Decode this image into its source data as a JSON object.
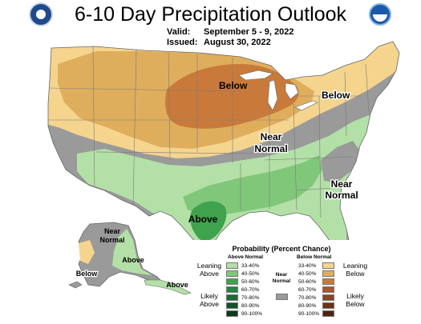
{
  "header": {
    "title": "6-10 Day Precipitation Outlook",
    "valid_label": "Valid:",
    "valid_value": "September 5 - 9, 2022",
    "issued_label": "Issued:",
    "issued_value": "August 30, 2022"
  },
  "map_labels": {
    "below_upper_midwest": "Below",
    "below_northeast": "Below",
    "near_normal_central_1": "Near",
    "near_normal_central_2": "Normal",
    "near_normal_southeast_1": "Near",
    "near_normal_southeast_2": "Normal",
    "above_texas": "Above",
    "alaska_near_1": "Near",
    "alaska_near_2": "Normal",
    "alaska_above": "Above",
    "alaska_below": "Below",
    "alaska_aleutians_above": "Above"
  },
  "legend": {
    "title": "Probability (Percent Chance)",
    "above_header": "Above Normal",
    "below_header": "Below Normal",
    "near_normal_1": "Near",
    "near_normal_2": "Normal",
    "leaning_above_1": "Leaning",
    "leaning_above_2": "Above",
    "likely_above_1": "Likely",
    "likely_above_2": "Above",
    "leaning_below_1": "Leaning",
    "leaning_below_2": "Below",
    "likely_below_1": "Likely",
    "likely_below_2": "Below",
    "above_rows": [
      {
        "pct": "33-40%",
        "color": "#b3e0a6"
      },
      {
        "pct": "40-50%",
        "color": "#80c77a"
      },
      {
        "pct": "50-60%",
        "color": "#3fa34d"
      },
      {
        "pct": "60-70%",
        "color": "#238443"
      },
      {
        "pct": "70-80%",
        "color": "#1a6b35"
      },
      {
        "pct": "80-90%",
        "color": "#11522a"
      },
      {
        "pct": "90-100%",
        "color": "#0a3a1d"
      }
    ],
    "below_rows": [
      {
        "pct": "33-40%",
        "color": "#f5d48e"
      },
      {
        "pct": "40-50%",
        "color": "#dfae5c"
      },
      {
        "pct": "50-60%",
        "color": "#c97a3a"
      },
      {
        "pct": "60-70%",
        "color": "#a9572c"
      },
      {
        "pct": "70-80%",
        "color": "#8b4422"
      },
      {
        "pct": "80-90%",
        "color": "#6b331a"
      },
      {
        "pct": "90-100%",
        "color": "#4d2412"
      }
    ],
    "near_normal_color": "#9a9a9a"
  },
  "colors": {
    "background": "#ffffff",
    "water": "#ffffff",
    "near_normal": "#9a9a9a",
    "state_lines": "#7a7a7a"
  }
}
